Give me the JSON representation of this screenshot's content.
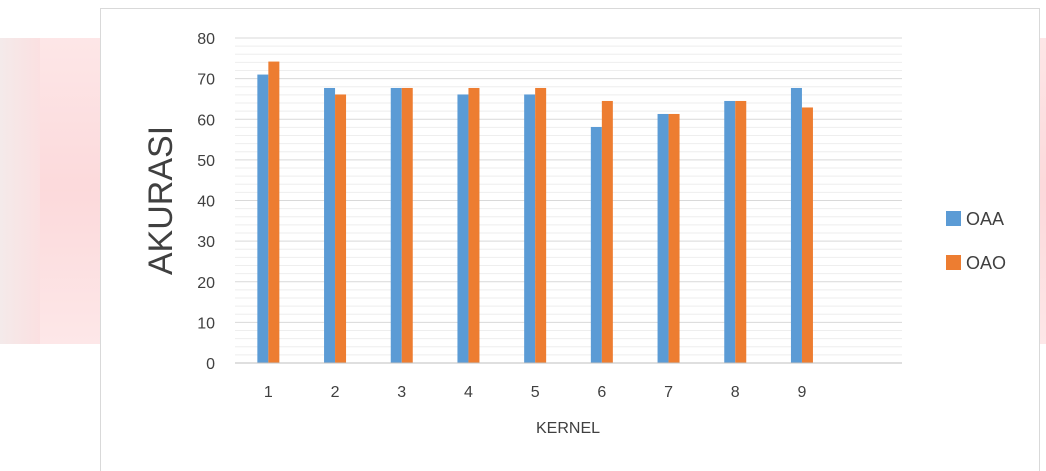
{
  "chart_data": {
    "type": "bar",
    "title": "",
    "xlabel": "KERNEL",
    "ylabel": "AKURASI",
    "categories": [
      "1",
      "2",
      "3",
      "4",
      "5",
      "6",
      "7",
      "8",
      "9",
      ""
    ],
    "ylim": [
      0,
      80
    ],
    "yticks": [
      "0",
      "10",
      "20",
      "30",
      "40",
      "50",
      "60",
      "70",
      "80"
    ],
    "grid": true,
    "legend": "right",
    "series": [
      {
        "name": "OAA",
        "color": "#5b9bd5",
        "values": [
          71,
          67.7,
          67.7,
          66.1,
          66.1,
          58.1,
          61.3,
          64.5,
          67.7,
          null
        ]
      },
      {
        "name": "OAO",
        "color": "#ed7d31",
        "values": [
          74.2,
          66.1,
          67.7,
          67.7,
          67.7,
          64.5,
          61.3,
          64.5,
          62.9,
          null
        ]
      }
    ]
  }
}
